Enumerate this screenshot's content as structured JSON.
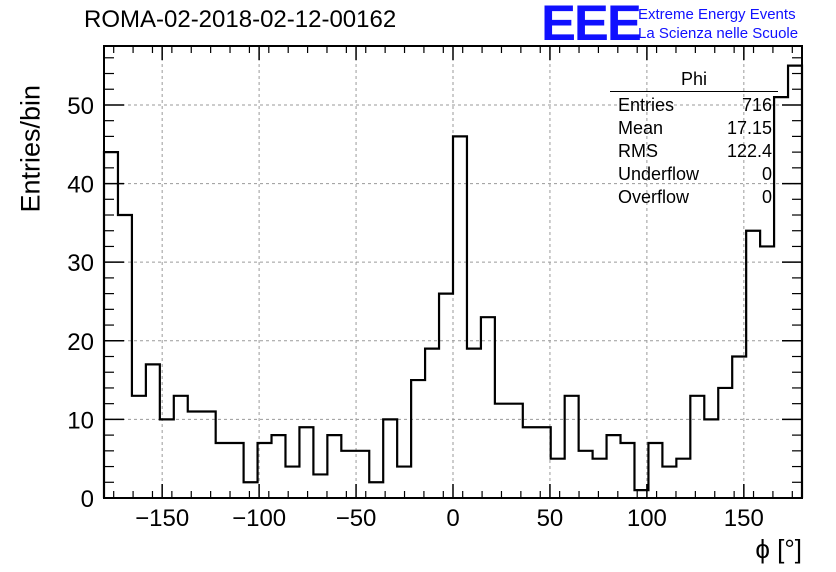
{
  "title": "ROMA-02-2018-02-12-00162",
  "logo": {
    "mark": "EEE",
    "line1": "Extreme Energy Events",
    "line2": "La Scienza nelle Scuole",
    "color": "#1010ff"
  },
  "stats": {
    "header": "Phi",
    "rows": [
      {
        "label": "Entries",
        "value": "716"
      },
      {
        "label": "Mean",
        "value": "17.15"
      },
      {
        "label": "RMS",
        "value": "122.4"
      },
      {
        "label": "Underflow",
        "value": "0"
      },
      {
        "label": "Overflow",
        "value": "0"
      }
    ]
  },
  "chart_data": {
    "type": "bar",
    "histogram": true,
    "xlabel": "ϕ [°]",
    "ylabel": "Entries/bin",
    "xlim": [
      -180,
      180
    ],
    "ylim": [
      0,
      57.5
    ],
    "bin_width": 7.2,
    "x_ticks": [
      -150,
      -100,
      -50,
      0,
      50,
      100,
      150
    ],
    "x_tick_labels": [
      "−150",
      "−100",
      "−50",
      "0",
      "50",
      "100",
      "150"
    ],
    "y_ticks": [
      0,
      10,
      20,
      30,
      40,
      50
    ],
    "y_tick_labels": [
      "0",
      "10",
      "20",
      "30",
      "40",
      "50"
    ],
    "grid": true,
    "values": [
      44,
      36,
      13,
      17,
      10,
      13,
      11,
      11,
      7,
      7,
      2,
      7,
      8,
      4,
      9,
      3,
      8,
      6,
      6,
      2,
      10,
      4,
      15,
      19,
      26,
      46,
      19,
      23,
      12,
      12,
      9,
      9,
      5,
      13,
      6,
      5,
      8,
      7,
      1,
      7,
      4,
      5,
      13,
      10,
      14,
      18,
      34,
      32,
      51,
      55
    ],
    "line_color": "#000000"
  }
}
